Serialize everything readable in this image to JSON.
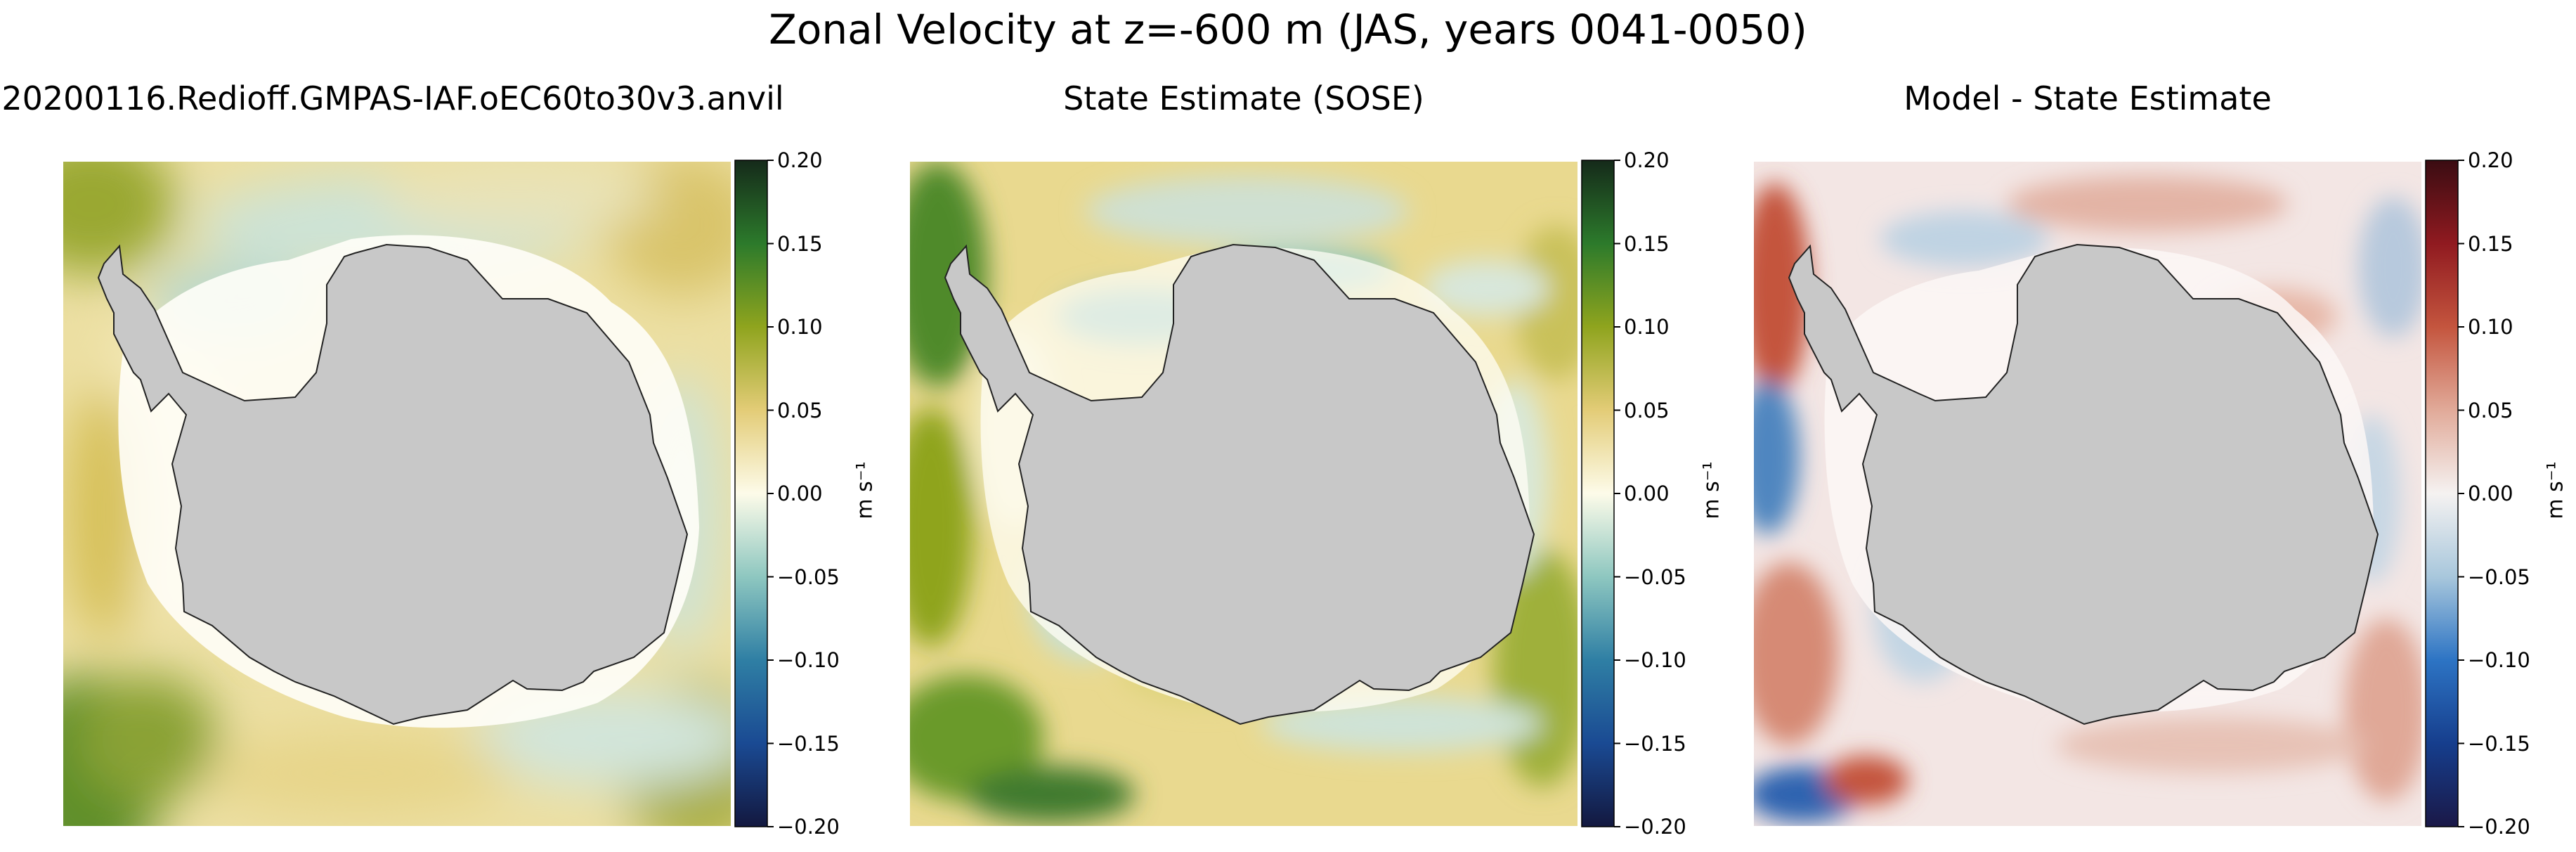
{
  "figure": {
    "suptitle": "Zonal Velocity at z=-600 m (JAS, years 0041-0050)"
  },
  "colors": {
    "land": "#c8c8c8",
    "coast": "#222222",
    "background": "#ffffff"
  },
  "chart_data": [
    {
      "type": "heatmap",
      "title": "20200116.Redioff.GMPAS-IAF.oEC60to30v3.anvil",
      "colormap": "cmocean.delta_r (blue-white-yellow-green)",
      "colorbar": {
        "label": "m s⁻¹",
        "vmin": -0.2,
        "vmax": 0.2,
        "ticks": [
          "0.20",
          "0.15",
          "0.10",
          "0.05",
          "0.00",
          "−0.05",
          "−0.10",
          "−0.15",
          "−0.20"
        ],
        "stops": [
          "#13183f",
          "#1a4a93",
          "#2f7fa4",
          "#8ec7c0",
          "#fdfbe9",
          "#e3cc77",
          "#8fa41e",
          "#2c7a2b",
          "#152a1a"
        ]
      },
      "field_character": "smooth; mostly weak eastward (yellow) with stronger green patches in corners, weak westward (teal) bands near shelf"
    },
    {
      "type": "heatmap",
      "title": "State Estimate (SOSE)",
      "colormap": "cmocean.delta_r (blue-white-yellow-green)",
      "colorbar": {
        "label": "m s⁻¹",
        "vmin": -0.2,
        "vmax": 0.2,
        "ticks": [
          "0.20",
          "0.15",
          "0.10",
          "0.05",
          "0.00",
          "−0.05",
          "−0.10",
          "−0.15",
          "−0.20"
        ],
        "stops": [
          "#13183f",
          "#1a4a93",
          "#2f7fa4",
          "#8ec7c0",
          "#fdfbe9",
          "#e3cc77",
          "#8fa41e",
          "#2c7a2b",
          "#152a1a"
        ]
      },
      "field_character": "noisier ACC filaments; strong green eastward jets in west and south, teal westward bands along the Antarctic slope"
    },
    {
      "type": "heatmap",
      "title": "Model - State Estimate",
      "colormap": "RdBu_r-like balance (blue-white-red)",
      "colorbar": {
        "label": "m s⁻¹",
        "vmin": -0.2,
        "vmax": 0.2,
        "ticks": [
          "0.20",
          "0.15",
          "0.10",
          "0.05",
          "0.00",
          "−0.05",
          "−0.10",
          "−0.15",
          "−0.20"
        ],
        "stops": [
          "#1a1847",
          "#163e8d",
          "#2d74c4",
          "#a8c7dc",
          "#f5f2f1",
          "#e1aa99",
          "#c4553e",
          "#901a20",
          "#3a0c12"
        ]
      },
      "field_character": "mixed red/blue filaments, strongest in corners; weak near continent"
    }
  ]
}
